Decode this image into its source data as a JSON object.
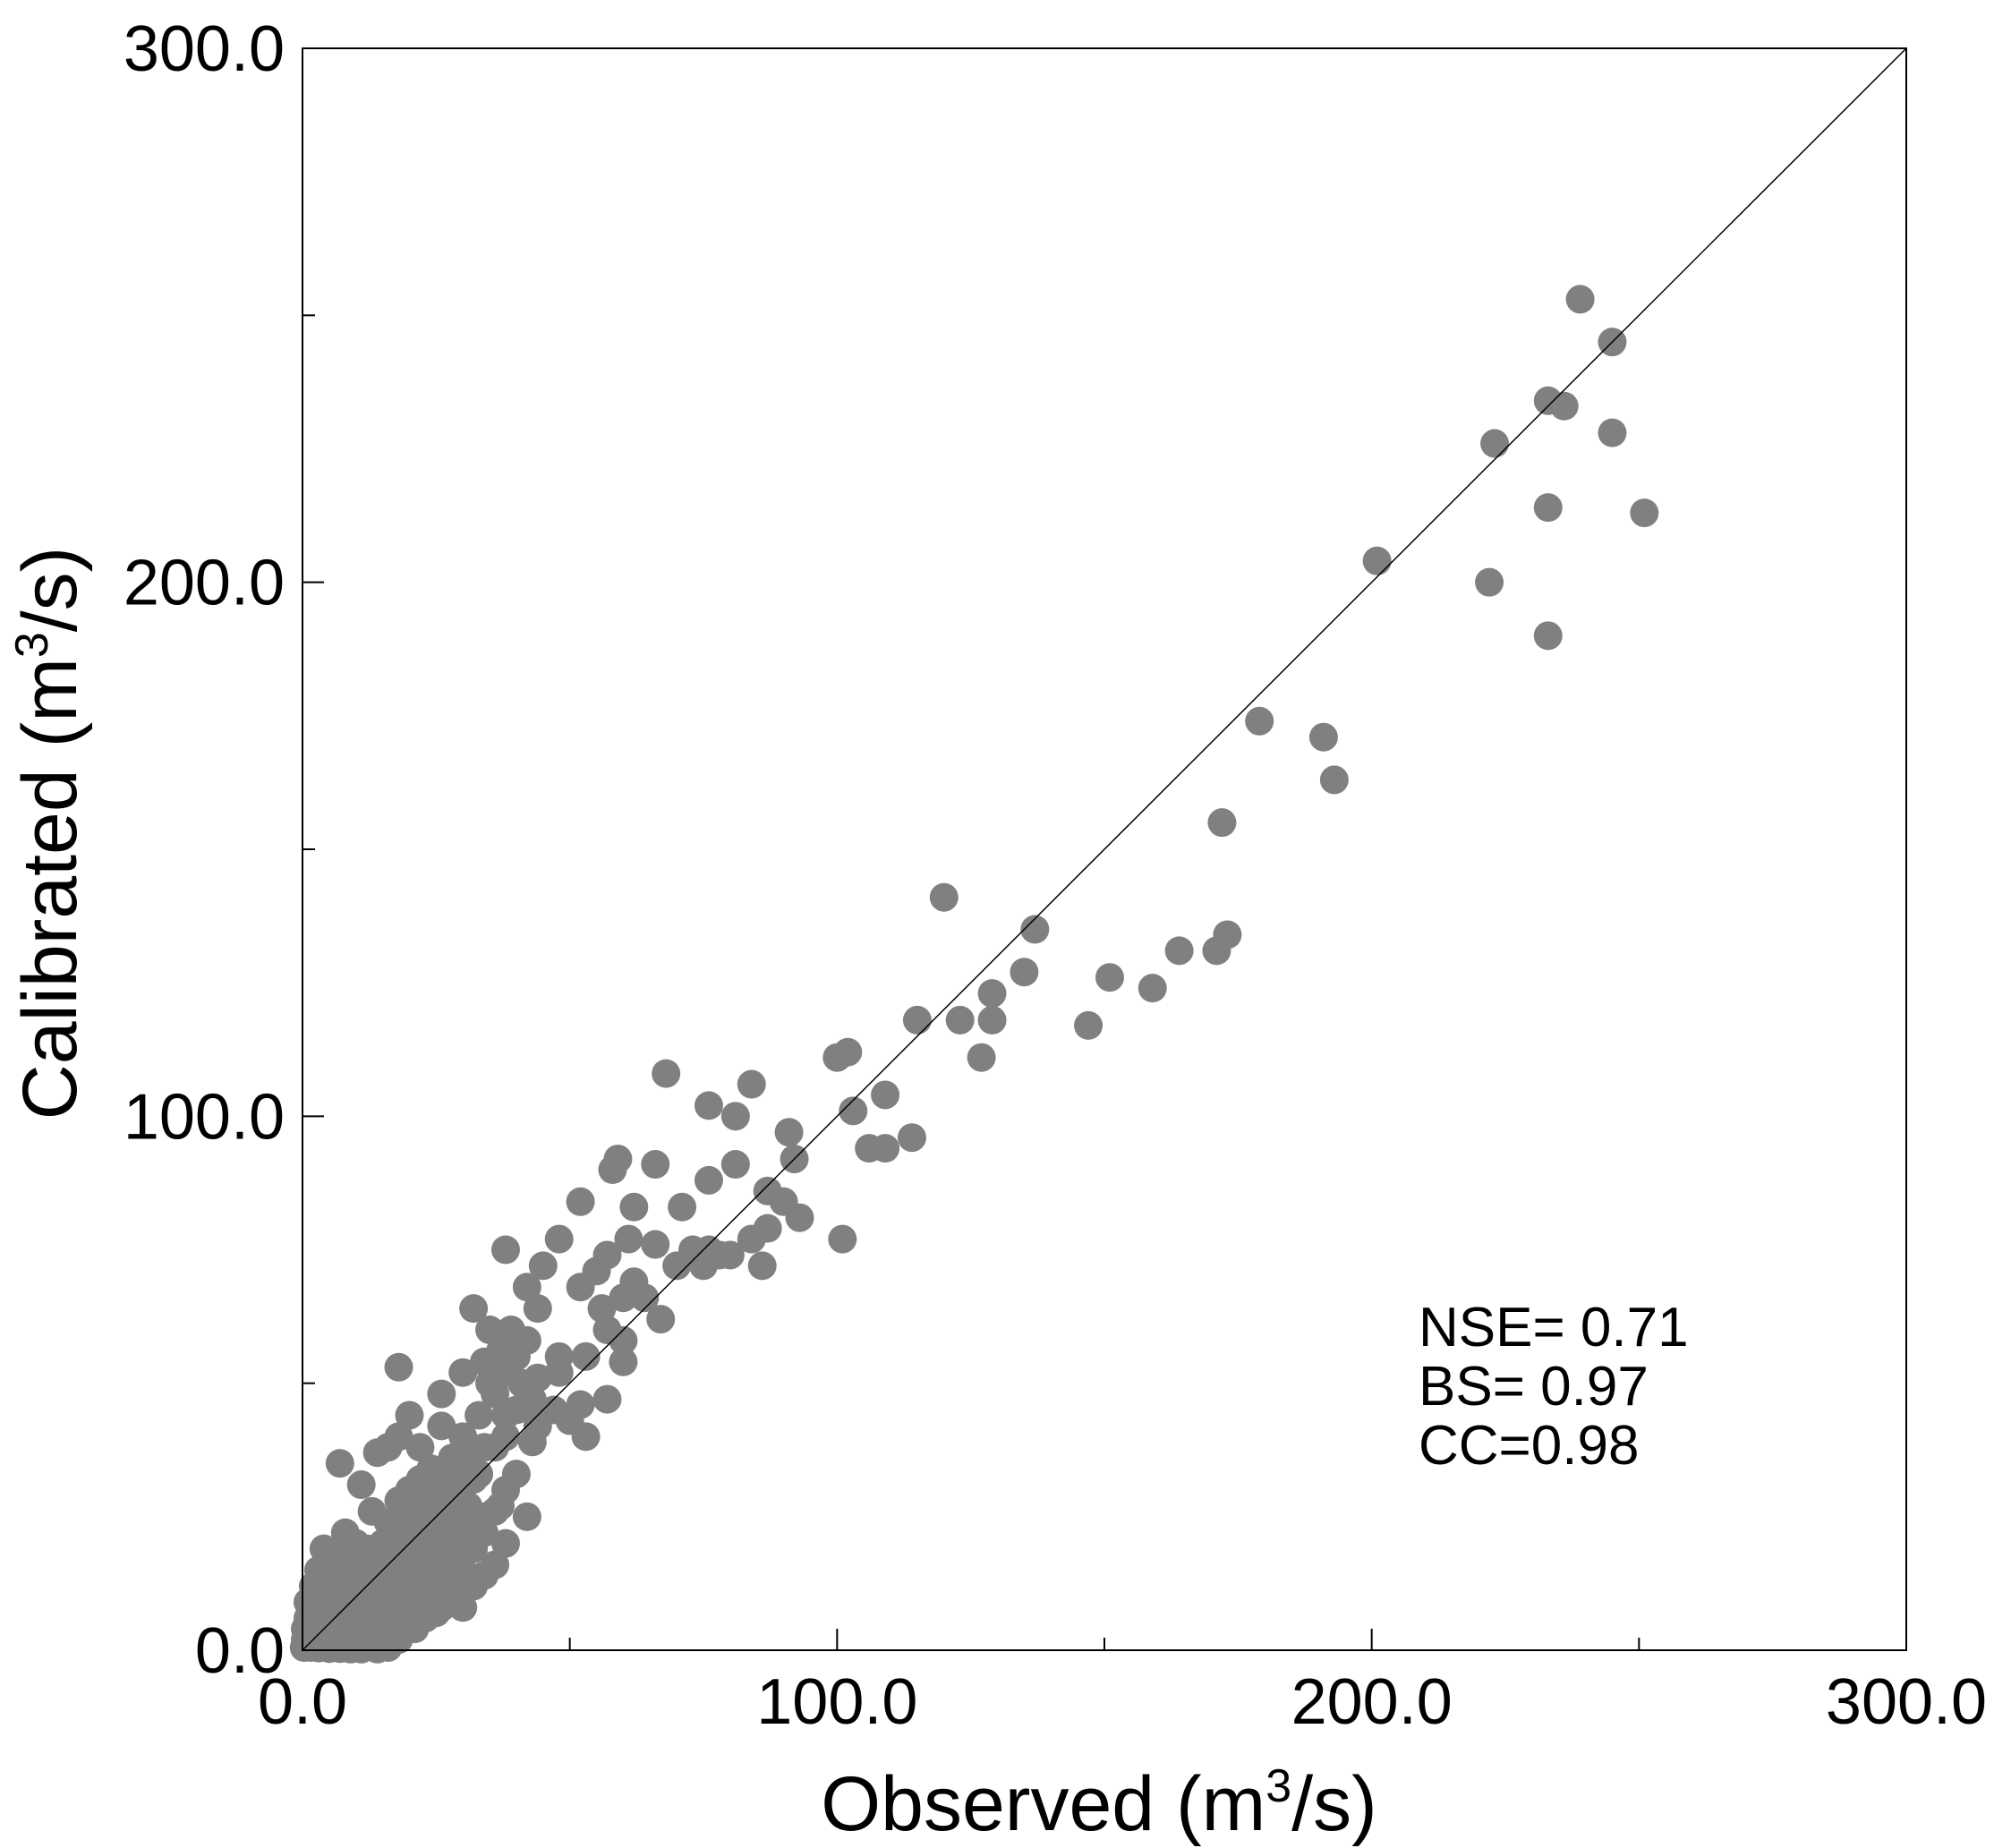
{
  "chart_data": {
    "type": "scatter",
    "xlabel": "Observed (m",
    "ylabel": "Calibrated (m",
    "unit_sup": "3",
    "unit_tail": "/s)",
    "xlim": [
      0,
      300
    ],
    "ylim": [
      0,
      300
    ],
    "major_ticks": [
      0,
      100,
      200,
      300
    ],
    "minor_ticks": [
      50,
      150,
      250
    ],
    "x_tick_labels": [
      "0.0",
      "100.0",
      "200.0",
      "300.0"
    ],
    "y_tick_labels": [
      "0.0",
      "100.0",
      "200.0",
      "300.0"
    ],
    "reference_line": "1:1",
    "marker_color": "#808080",
    "stats": [
      "NSE= 0.71",
      "BS= 0.97",
      "CC=0.98"
    ],
    "points": [
      [
        239,
        253
      ],
      [
        245,
        245
      ],
      [
        233,
        234
      ],
      [
        236,
        233
      ],
      [
        245,
        228
      ],
      [
        223,
        226
      ],
      [
        233,
        214
      ],
      [
        251,
        213
      ],
      [
        201,
        204
      ],
      [
        222,
        200
      ],
      [
        233,
        190
      ],
      [
        179,
        174
      ],
      [
        191,
        171
      ],
      [
        193,
        163
      ],
      [
        172,
        155
      ],
      [
        120,
        141
      ],
      [
        137,
        135
      ],
      [
        173,
        134
      ],
      [
        171,
        131
      ],
      [
        164,
        131
      ],
      [
        135,
        127
      ],
      [
        151,
        126
      ],
      [
        159,
        124
      ],
      [
        129,
        123
      ],
      [
        115,
        118
      ],
      [
        123,
        118
      ],
      [
        129,
        118
      ],
      [
        147,
        117
      ],
      [
        127,
        111
      ],
      [
        100,
        111
      ],
      [
        102,
        112
      ],
      [
        68,
        108
      ],
      [
        84,
        106
      ],
      [
        76,
        102
      ],
      [
        81,
        100
      ],
      [
        103,
        101
      ],
      [
        109,
        104
      ],
      [
        114,
        96
      ],
      [
        106,
        94
      ],
      [
        109,
        94
      ],
      [
        91,
        97
      ],
      [
        92,
        92
      ],
      [
        81,
        91
      ],
      [
        66,
        91
      ],
      [
        59,
        92
      ],
      [
        58,
        90
      ],
      [
        76,
        88
      ],
      [
        87,
        86
      ],
      [
        90,
        84
      ],
      [
        93,
        81
      ],
      [
        87,
        79
      ],
      [
        84,
        77
      ],
      [
        62,
        83
      ],
      [
        71,
        83
      ],
      [
        61,
        77
      ],
      [
        66,
        76
      ],
      [
        73,
        75
      ],
      [
        76,
        75
      ],
      [
        78,
        74
      ],
      [
        80,
        74
      ],
      [
        101,
        77
      ],
      [
        86,
        72
      ],
      [
        75,
        72
      ],
      [
        70,
        72
      ],
      [
        38,
        75
      ],
      [
        48,
        77
      ],
      [
        52,
        84
      ],
      [
        57,
        74
      ],
      [
        55,
        71
      ],
      [
        62,
        69
      ],
      [
        64,
        66
      ],
      [
        60,
        66
      ],
      [
        67,
        62
      ],
      [
        56,
        64
      ],
      [
        52,
        68
      ],
      [
        45,
        72
      ],
      [
        42,
        68
      ],
      [
        44,
        64
      ],
      [
        32,
        64
      ],
      [
        35,
        60
      ],
      [
        42,
        58
      ],
      [
        40,
        55
      ],
      [
        48,
        55
      ],
      [
        53,
        55
      ],
      [
        57,
        60
      ],
      [
        60,
        58
      ],
      [
        60,
        54
      ],
      [
        48,
        52
      ],
      [
        44,
        51
      ],
      [
        38,
        52
      ],
      [
        34,
        54
      ],
      [
        30,
        52
      ],
      [
        18,
        53
      ],
      [
        26,
        48
      ],
      [
        36,
        48
      ],
      [
        40,
        45
      ],
      [
        47,
        45
      ],
      [
        52,
        46
      ],
      [
        57,
        47
      ],
      [
        50,
        43
      ],
      [
        44,
        42
      ],
      [
        38,
        40
      ],
      [
        34,
        38
      ],
      [
        30,
        40
      ],
      [
        26,
        42
      ],
      [
        20,
        44
      ],
      [
        18,
        40
      ],
      [
        16,
        38
      ],
      [
        14,
        37
      ],
      [
        43,
        39
      ],
      [
        53,
        40
      ],
      [
        28,
        36
      ],
      [
        24,
        34
      ],
      [
        22,
        32
      ],
      [
        20,
        30
      ],
      [
        32,
        32
      ],
      [
        38,
        30
      ],
      [
        40,
        33
      ],
      [
        7,
        35
      ],
      [
        11,
        31
      ],
      [
        18,
        28
      ],
      [
        24,
        27
      ],
      [
        28,
        26
      ],
      [
        34,
        25
      ],
      [
        37,
        27
      ],
      [
        42,
        25
      ],
      [
        36,
        26
      ],
      [
        13,
        26
      ],
      [
        16,
        24
      ],
      [
        20,
        24
      ],
      [
        26,
        23
      ],
      [
        30,
        22
      ],
      [
        34,
        22
      ],
      [
        38,
        20
      ],
      [
        8,
        22
      ],
      [
        10,
        20
      ],
      [
        12,
        19
      ],
      [
        15,
        20
      ],
      [
        20,
        20
      ],
      [
        25,
        19
      ],
      [
        29,
        18
      ],
      [
        32,
        19
      ],
      [
        36,
        16
      ],
      [
        4,
        19
      ],
      [
        6,
        18
      ],
      [
        9,
        17
      ],
      [
        13,
        16
      ],
      [
        17,
        16
      ],
      [
        22,
        16
      ],
      [
        26,
        15
      ],
      [
        30,
        15
      ],
      [
        34,
        14
      ],
      [
        3,
        15
      ],
      [
        5,
        14
      ],
      [
        8,
        14
      ],
      [
        12,
        14
      ],
      [
        16,
        13
      ],
      [
        20,
        12
      ],
      [
        24,
        12
      ],
      [
        28,
        11
      ],
      [
        32,
        12
      ],
      [
        2,
        12
      ],
      [
        4,
        11
      ],
      [
        7,
        11
      ],
      [
        10,
        11
      ],
      [
        14,
        10
      ],
      [
        18,
        10
      ],
      [
        22,
        9
      ],
      [
        26,
        8
      ],
      [
        30,
        8
      ],
      [
        1,
        9
      ],
      [
        3,
        9
      ],
      [
        6,
        9
      ],
      [
        9,
        8
      ],
      [
        12,
        8
      ],
      [
        15,
        7
      ],
      [
        19,
        7
      ],
      [
        23,
        6
      ],
      [
        25,
        7
      ],
      [
        1,
        6
      ],
      [
        3,
        6
      ],
      [
        5,
        6
      ],
      [
        8,
        5
      ],
      [
        11,
        5
      ],
      [
        14,
        4
      ],
      [
        17,
        4
      ],
      [
        21,
        4
      ],
      [
        0.5,
        4
      ],
      [
        2,
        4
      ],
      [
        4,
        3
      ],
      [
        6,
        3
      ],
      [
        9,
        3
      ],
      [
        12,
        2
      ],
      [
        15,
        2
      ],
      [
        18,
        2
      ],
      [
        0.5,
        2
      ],
      [
        2,
        1.5
      ],
      [
        4,
        1.5
      ],
      [
        6,
        1
      ],
      [
        8,
        1
      ],
      [
        10,
        0.8
      ],
      [
        13,
        0.8
      ],
      [
        16,
        0.5
      ],
      [
        0.3,
        0.5
      ],
      [
        1.5,
        0.5
      ],
      [
        3,
        0.4
      ],
      [
        5,
        0.3
      ],
      [
        7,
        0.3
      ],
      [
        9,
        0.2
      ],
      [
        11,
        0.2
      ],
      [
        14,
        0.2
      ],
      [
        3,
        3
      ],
      [
        5,
        8
      ],
      [
        7,
        6
      ],
      [
        10,
        14
      ],
      [
        13,
        10
      ],
      [
        16,
        8
      ],
      [
        19,
        13
      ],
      [
        21,
        18
      ],
      [
        23,
        22
      ],
      [
        27,
        30
      ],
      [
        29,
        34
      ],
      [
        31,
        36
      ],
      [
        33,
        44
      ],
      [
        35,
        50
      ],
      [
        37,
        56
      ],
      [
        39,
        60
      ],
      [
        41,
        50
      ],
      [
        43,
        47
      ],
      [
        22,
        38
      ],
      [
        19,
        25
      ],
      [
        17,
        19
      ],
      [
        24,
        26
      ],
      [
        28,
        20
      ],
      [
        31,
        27
      ],
      [
        33,
        33
      ],
      [
        36,
        38
      ],
      [
        38,
        44
      ],
      [
        14,
        16
      ],
      [
        16,
        18
      ],
      [
        18,
        21
      ],
      [
        21,
        24
      ],
      [
        23,
        28
      ],
      [
        25,
        31
      ],
      [
        27,
        24
      ],
      [
        29,
        29
      ]
    ]
  }
}
